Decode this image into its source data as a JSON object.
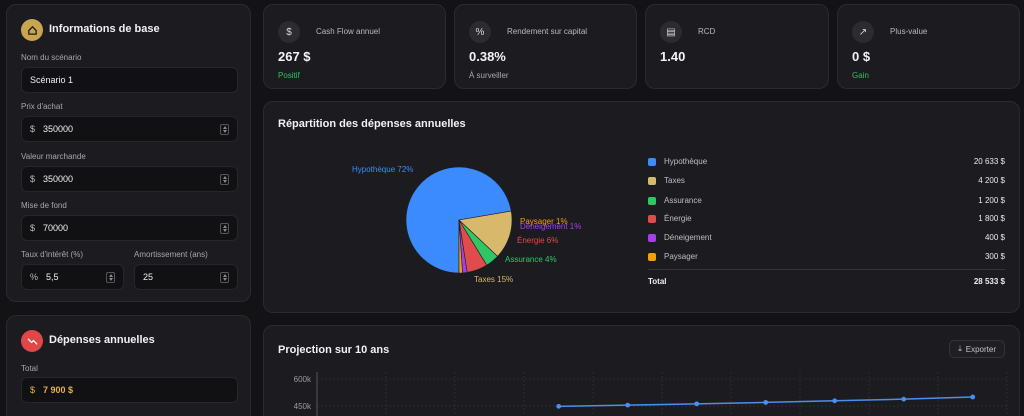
{
  "base": {
    "title": "Informations de base",
    "scenario_label": "Nom du scénario",
    "scenario_value": "Scénario 1",
    "prix_label": "Prix d'achat",
    "prix_value": "350000",
    "valeur_label": "Valeur marchande",
    "valeur_value": "350000",
    "mise_label": "Mise de fond",
    "mise_value": "70000",
    "taux_label": "Taux d'intérêt (%)",
    "taux_value": "5,5",
    "amort_label": "Amortissement (ans)",
    "amort_value": "25",
    "dollar": "$",
    "percent": "%"
  },
  "depenses": {
    "title": "Dépenses annuelles",
    "total_label": "Total",
    "total_value": "7 900 $",
    "dollar": "$"
  },
  "kpis": [
    {
      "label": "Cash Flow annuel",
      "value": "267 $",
      "sub": "Positif",
      "sub_color": "#22c55e",
      "icon": "dollar-icon",
      "glyph": "$"
    },
    {
      "label": "Rendement sur capital",
      "value": "0.38%",
      "sub": "À surveiller",
      "sub_color": "#a7a7ad",
      "icon": "percent-icon",
      "glyph": "%"
    },
    {
      "label": "RCD",
      "value": "1.40",
      "sub": "",
      "sub_color": "#a7a7ad",
      "icon": "calculator-icon",
      "glyph": "▤"
    },
    {
      "label": "Plus-value",
      "value": "0 $",
      "sub": "Gain",
      "sub_color": "#22c55e",
      "icon": "trend-up-icon",
      "glyph": "↗"
    }
  ],
  "repartition": {
    "title": "Répartition des dépenses annuelles",
    "total_label": "Total",
    "total_value": "28 533 $"
  },
  "chart_data": [
    {
      "type": "pie",
      "categories": [
        "Hypothèque",
        "Taxes",
        "Assurance",
        "Énergie",
        "Déneigement",
        "Paysager"
      ],
      "values": [
        20633,
        4200,
        1200,
        1800,
        400,
        300
      ],
      "value_labels": [
        "20 633 $",
        "4 200 $",
        "1 200 $",
        "1 800 $",
        "400 $",
        "300 $"
      ],
      "slice_labels": [
        "Hypothèque 72%",
        "Taxes 15%",
        "Assurance 4%",
        "Énergie 6%",
        "Déneigement 1%",
        "Paysager 1%"
      ],
      "colors": [
        "#3b8bff",
        "#d8b86a",
        "#2fc766",
        "#e04b4b",
        "#a540e8",
        "#f59e0b"
      ],
      "legend": "right"
    },
    {
      "type": "line",
      "title": "Projection sur 10 ans",
      "yticks": [
        "600k",
        "450k"
      ],
      "series": [
        {
          "values": [
            null,
            null,
            null,
            448,
            455,
            462,
            470,
            479,
            488,
            500
          ]
        }
      ],
      "color": "#4a8ff0"
    }
  ],
  "projection": {
    "title": "Projection sur 10 ans",
    "export_label": "Exporter"
  },
  "colors": {
    "accent_gold": "#c9a552",
    "accent_red": "#e04848",
    "positive": "#22c55e"
  }
}
